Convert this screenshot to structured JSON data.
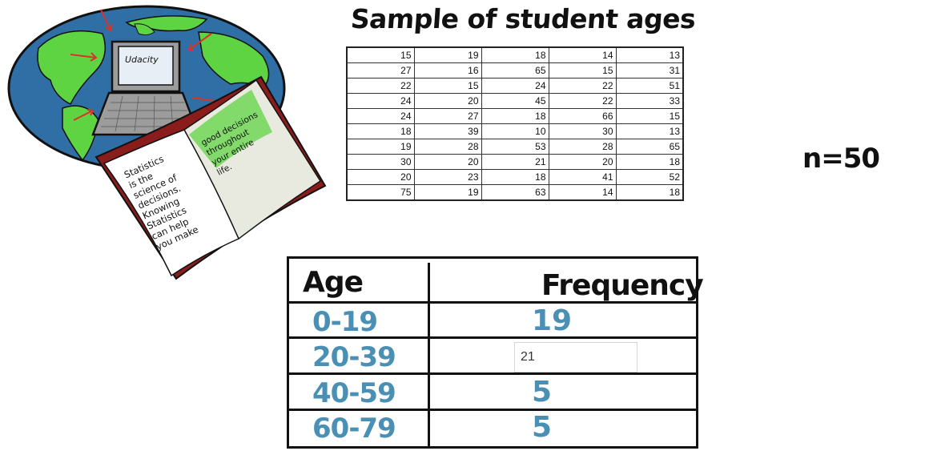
{
  "illustration": {
    "laptop_screen_text": "Udacity",
    "book_left_page_lines": [
      "Statistics",
      "is the",
      "science of",
      "decisions.",
      "Knowing",
      "Statistics",
      "can help",
      "you make"
    ],
    "book_right_page_lines": [
      "good decisions",
      "throughout",
      "your entire",
      "life."
    ],
    "colors": {
      "ocean": "#2f6fa6",
      "land": "#5fd443",
      "book_cover": "#8b1c1c",
      "arrow": "#d9342b"
    }
  },
  "title": "Sample of student ages",
  "sample_table": {
    "rows": [
      [
        "15",
        "19",
        "18",
        "14",
        "13"
      ],
      [
        "27",
        "16",
        "65",
        "15",
        "31"
      ],
      [
        "22",
        "15",
        "24",
        "22",
        "51"
      ],
      [
        "24",
        "20",
        "45",
        "22",
        "33"
      ],
      [
        "24",
        "27",
        "18",
        "66",
        "15"
      ],
      [
        "18",
        "39",
        "10",
        "30",
        "13"
      ],
      [
        "19",
        "28",
        "53",
        "28",
        "65"
      ],
      [
        "30",
        "20",
        "21",
        "20",
        "18"
      ],
      [
        "20",
        "23",
        "18",
        "41",
        "52"
      ],
      [
        "75",
        "19",
        "63",
        "14",
        "18"
      ]
    ]
  },
  "n_label": "n=50",
  "frequency_table": {
    "headers": {
      "age": "Age",
      "frequency": "Frequency"
    },
    "rows": [
      {
        "age": "0-19",
        "frequency": "19"
      },
      {
        "age": "20-39",
        "frequency": "21",
        "is_input": true
      },
      {
        "age": "40-59",
        "frequency": "5"
      },
      {
        "age": "60-79",
        "frequency": "5"
      }
    ],
    "accent_color": "#4a90b4"
  }
}
